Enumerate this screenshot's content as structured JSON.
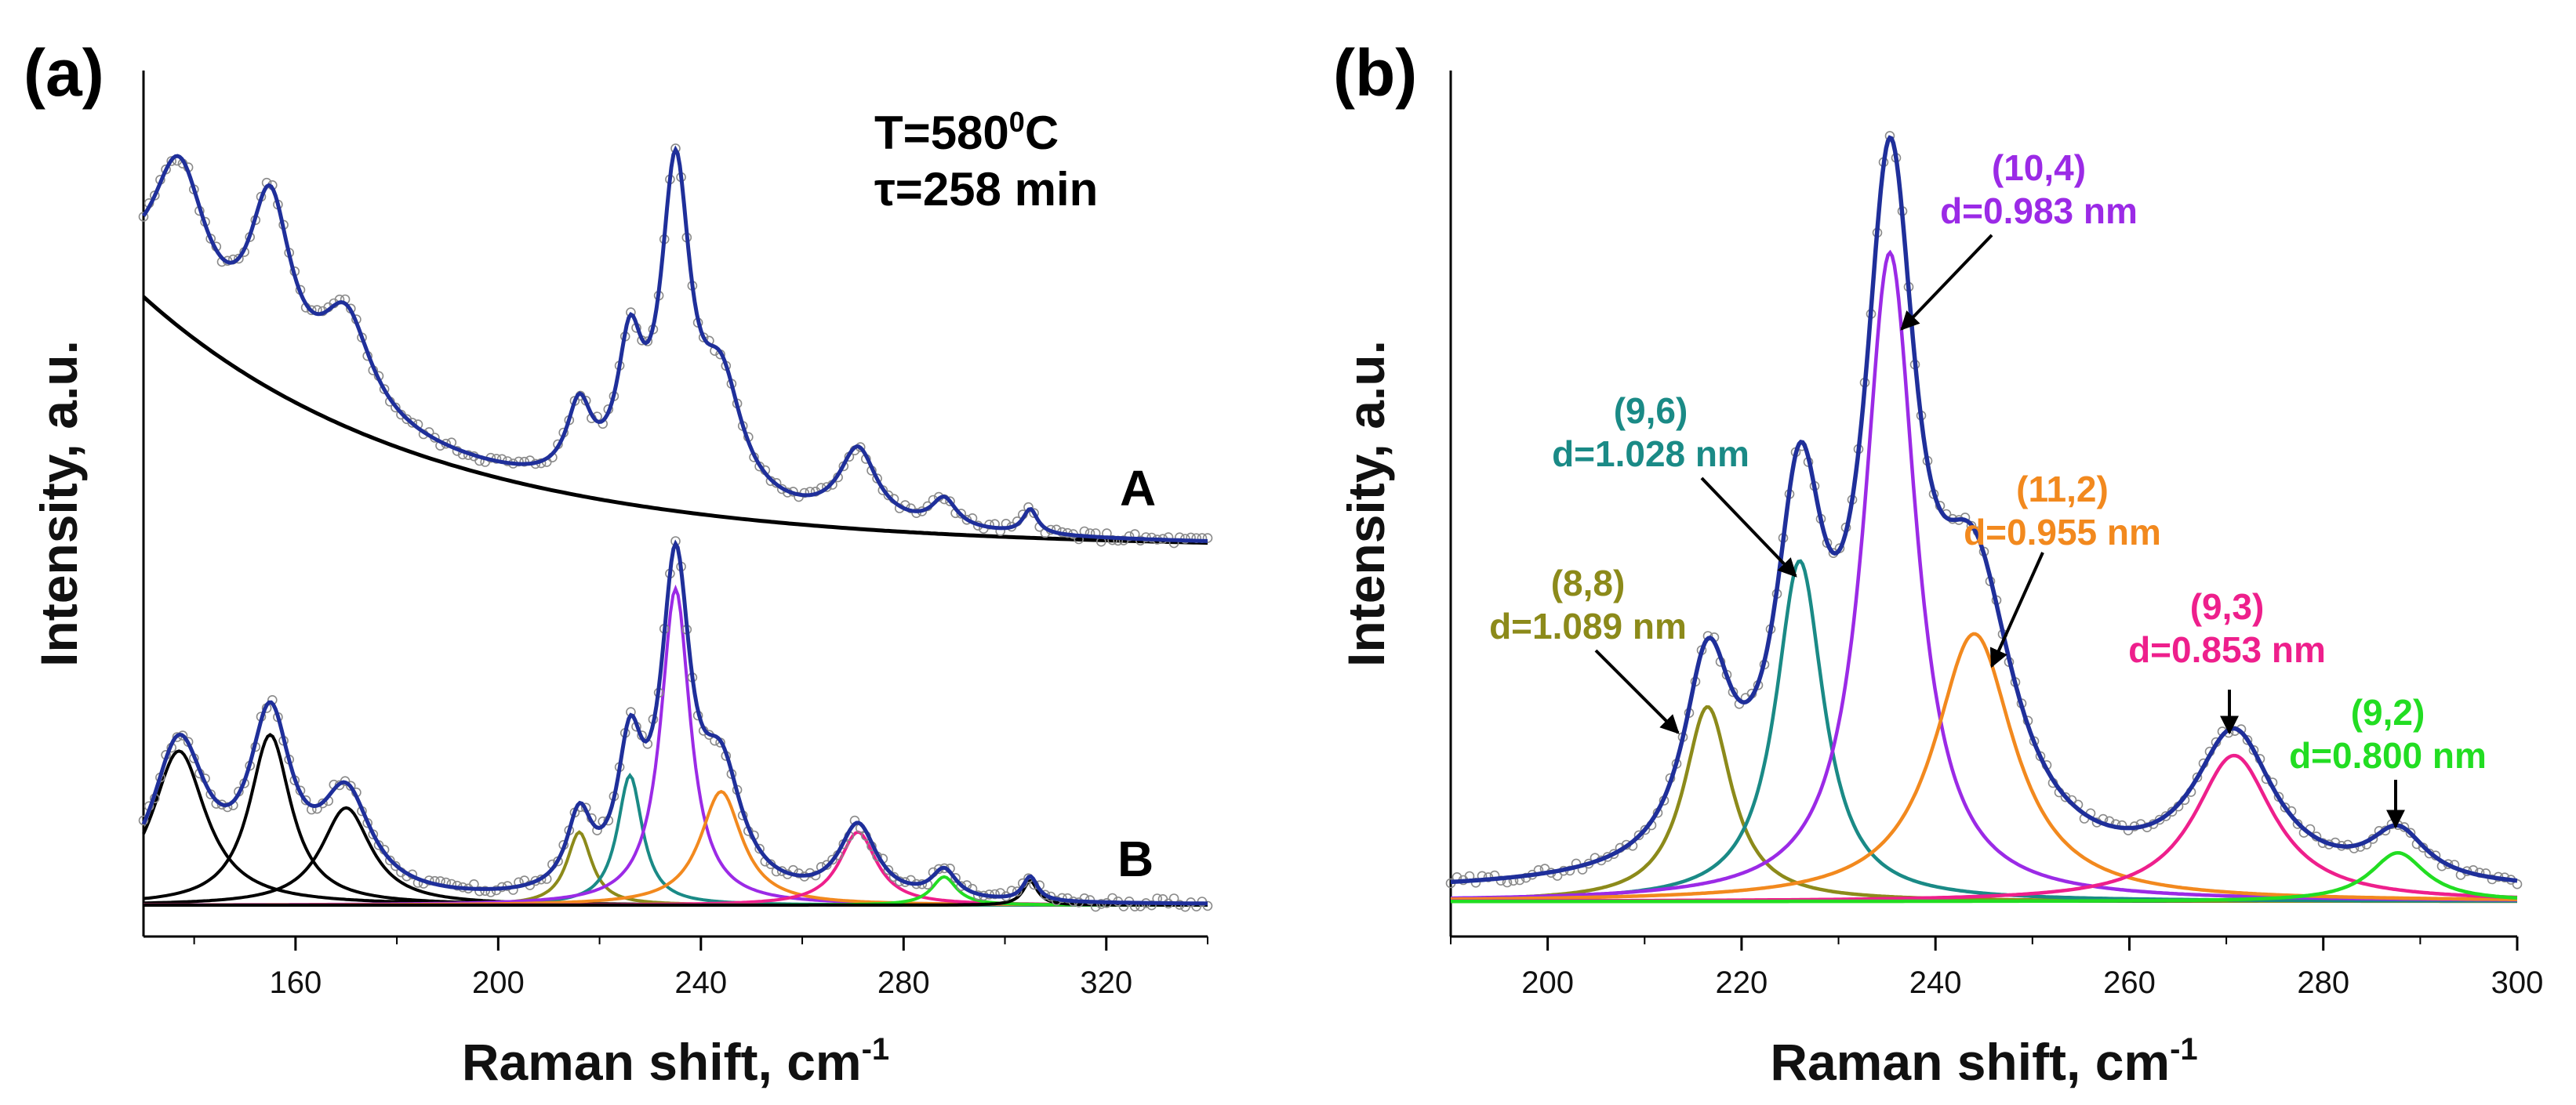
{
  "colors": {
    "axis": "#000000",
    "fit": "#1f2f9a",
    "data_points": "#8a8a8a",
    "background_curve": "#000000",
    "rbm_8_8": "#8c8a1a",
    "rbm_9_6": "#1a8a86",
    "rbm_10_4": "#9b2ae6",
    "rbm_11_2": "#f2891e",
    "rbm_9_3": "#ee1f8c",
    "rbm_9_2": "#22dd22",
    "black_components": "#000000"
  },
  "chart_data": [
    {
      "id": "a",
      "panel_label": "(a)",
      "type": "line",
      "xlabel": "Raman shift, cm",
      "xlabel_sup": "-1",
      "ylabel": "Intensity, a.u.",
      "xlim": [
        130,
        340
      ],
      "ylim": [
        0,
        1
      ],
      "xticks": [
        160,
        200,
        240,
        280,
        320
      ],
      "yticks_labeled": false,
      "conditions": {
        "temperature": "T=580",
        "temperature_sup": "0",
        "temperature_unit": "C",
        "time": "τ=258 min"
      },
      "trace_labels": [
        "A",
        "B"
      ],
      "offsets": {
        "A": 0.44,
        "B": 0.0
      },
      "series": [
        {
          "name": "A measured + fit",
          "trace": "A",
          "role": "fit",
          "color": "#1f2f9a",
          "background": {
            "y0": 0.31,
            "decay": 55,
            "x0": 130
          },
          "peaks": [
            {
              "center": 137,
              "height": 0.19,
              "width": 13
            },
            {
              "center": 155,
              "height": 0.21,
              "width": 10
            },
            {
              "center": 170,
              "height": 0.12,
              "width": 12
            },
            {
              "center": 216,
              "height": 0.09,
              "width": 6
            },
            {
              "center": 226,
              "height": 0.16,
              "width": 6
            },
            {
              "center": 235,
              "height": 0.39,
              "width": 7
            },
            {
              "center": 244,
              "height": 0.14,
              "width": 10
            },
            {
              "center": 271,
              "height": 0.09,
              "width": 9
            },
            {
              "center": 288,
              "height": 0.035,
              "width": 6
            },
            {
              "center": 305,
              "height": 0.03,
              "width": 3.5
            }
          ]
        },
        {
          "name": "A background",
          "trace": "A",
          "role": "background",
          "color": "#000000",
          "background": {
            "y0": 0.31,
            "decay": 55,
            "x0": 130
          },
          "peaks": []
        },
        {
          "name": "B fit envelope",
          "trace": "B",
          "role": "fit",
          "color": "#1f2f9a",
          "peaks": [
            {
              "center": 137,
              "height": 0.19,
              "width": 13
            },
            {
              "center": 155,
              "height": 0.21,
              "width": 10
            },
            {
              "center": 170,
              "height": 0.12,
              "width": 12
            },
            {
              "center": 216,
              "height": 0.09,
              "width": 6
            },
            {
              "center": 226,
              "height": 0.16,
              "width": 6
            },
            {
              "center": 235,
              "height": 0.39,
              "width": 7
            },
            {
              "center": 244,
              "height": 0.14,
              "width": 10
            },
            {
              "center": 271,
              "height": 0.09,
              "width": 9
            },
            {
              "center": 288,
              "height": 0.035,
              "width": 6
            },
            {
              "center": 305,
              "height": 0.03,
              "width": 3.5
            }
          ]
        },
        {
          "name": "B component 137",
          "trace": "B",
          "role": "component",
          "color": "#000000",
          "peaks": [
            {
              "center": 137,
              "height": 0.19,
              "width": 13
            }
          ]
        },
        {
          "name": "B component 155",
          "trace": "B",
          "role": "component",
          "color": "#000000",
          "peaks": [
            {
              "center": 155,
              "height": 0.21,
              "width": 10
            }
          ]
        },
        {
          "name": "B component 170",
          "trace": "B",
          "role": "component",
          "color": "#000000",
          "peaks": [
            {
              "center": 170,
              "height": 0.12,
              "width": 12
            }
          ]
        },
        {
          "name": "B component 216",
          "trace": "B",
          "role": "component",
          "color": "#8c8a1a",
          "peaks": [
            {
              "center": 216,
              "height": 0.09,
              "width": 6
            }
          ]
        },
        {
          "name": "B component 226",
          "trace": "B",
          "role": "component",
          "color": "#1a8a86",
          "peaks": [
            {
              "center": 226,
              "height": 0.16,
              "width": 6
            }
          ]
        },
        {
          "name": "B component 235",
          "trace": "B",
          "role": "component",
          "color": "#9b2ae6",
          "peaks": [
            {
              "center": 235,
              "height": 0.39,
              "width": 7
            }
          ]
        },
        {
          "name": "B component 244",
          "trace": "B",
          "role": "component",
          "color": "#f2891e",
          "peaks": [
            {
              "center": 244,
              "height": 0.14,
              "width": 10
            }
          ]
        },
        {
          "name": "B component 271",
          "trace": "B",
          "role": "component",
          "color": "#ee1f8c",
          "peaks": [
            {
              "center": 271,
              "height": 0.09,
              "width": 9
            }
          ]
        },
        {
          "name": "B component 288",
          "trace": "B",
          "role": "component",
          "color": "#22dd22",
          "peaks": [
            {
              "center": 288,
              "height": 0.035,
              "width": 6
            }
          ]
        },
        {
          "name": "B component 305",
          "trace": "B",
          "role": "component",
          "color": "#000000",
          "peaks": [
            {
              "center": 305,
              "height": 0.03,
              "width": 3.5
            }
          ]
        }
      ]
    },
    {
      "id": "b",
      "panel_label": "(b)",
      "type": "line",
      "xlabel": "Raman shift, cm",
      "xlabel_sup": "-1",
      "ylabel": "Intensity, a.u.",
      "xlim": [
        190,
        300
      ],
      "ylim": [
        0,
        1
      ],
      "xticks": [
        200,
        220,
        240,
        260,
        280,
        300
      ],
      "yticks_labeled": false,
      "baseline": 0.015,
      "series": [
        {
          "name": "fit envelope",
          "role": "fit",
          "color": "#1f2f9a",
          "peaks": [
            {
              "center": 216.5,
              "height": 0.24,
              "width": 6
            },
            {
              "center": 226,
              "height": 0.42,
              "width": 6
            },
            {
              "center": 235.3,
              "height": 0.8,
              "width": 6.5
            },
            {
              "center": 244,
              "height": 0.33,
              "width": 10
            },
            {
              "center": 270.8,
              "height": 0.18,
              "width": 10
            },
            {
              "center": 287.7,
              "height": 0.06,
              "width": 7
            }
          ]
        },
        {
          "name": "(8,8)",
          "role": "component",
          "color": "#8c8a1a",
          "peaks": [
            {
              "center": 216.5,
              "height": 0.24,
              "width": 6
            }
          ]
        },
        {
          "name": "(9,6)",
          "role": "component",
          "color": "#1a8a86",
          "peaks": [
            {
              "center": 226,
              "height": 0.42,
              "width": 6
            }
          ]
        },
        {
          "name": "(10,4)",
          "role": "component",
          "color": "#9b2ae6",
          "peaks": [
            {
              "center": 235.3,
              "height": 0.8,
              "width": 6.5
            }
          ]
        },
        {
          "name": "(11,2)",
          "role": "component",
          "color": "#f2891e",
          "peaks": [
            {
              "center": 244,
              "height": 0.33,
              "width": 10
            }
          ]
        },
        {
          "name": "(9,3)",
          "role": "component",
          "color": "#ee1f8c",
          "peaks": [
            {
              "center": 270.8,
              "height": 0.18,
              "width": 10
            }
          ]
        },
        {
          "name": "(9,2)",
          "role": "component",
          "color": "#22dd22",
          "peaks": [
            {
              "center": 287.7,
              "height": 0.06,
              "width": 7
            }
          ]
        }
      ],
      "annotations": [
        {
          "chirality": "(8,8)",
          "diameter": "d=1.089 nm",
          "color": "#8c8a1a",
          "peak_x": 216.5
        },
        {
          "chirality": "(9,6)",
          "diameter": "d=1.028 nm",
          "color": "#1a8a86",
          "peak_x": 226
        },
        {
          "chirality": "(10,4)",
          "diameter": "d=0.983 nm",
          "color": "#9b2ae6",
          "peak_x": 235.3
        },
        {
          "chirality": "(11,2)",
          "diameter": "d=0.955 nm",
          "color": "#f2891e",
          "peak_x": 244
        },
        {
          "chirality": "(9,3)",
          "diameter": "d=0.853 nm",
          "color": "#ee1f8c",
          "peak_x": 270.8
        },
        {
          "chirality": "(9,2)",
          "diameter": "d=0.800 nm",
          "color": "#22dd22",
          "peak_x": 287.7
        }
      ]
    }
  ]
}
